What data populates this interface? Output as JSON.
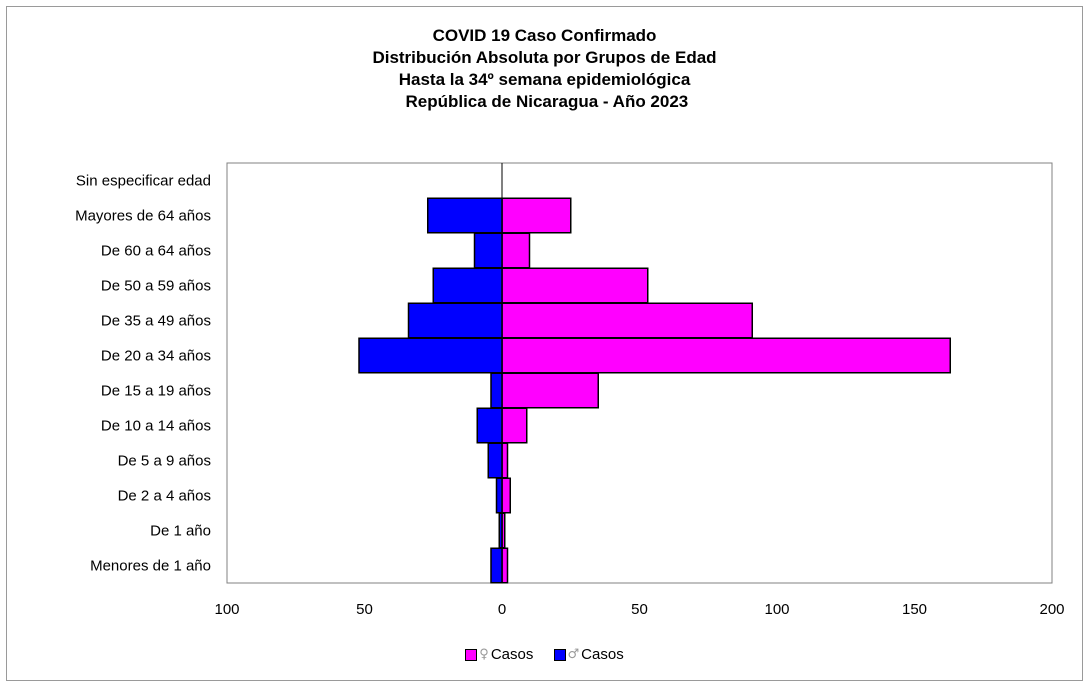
{
  "colors": {
    "female": "#ff00ff",
    "male": "#0000ff",
    "axis": "#000000",
    "plot_border": "#808080"
  },
  "chart_data": {
    "type": "bar",
    "orientation": "horizontal-population-pyramid",
    "title_lines": [
      "COVID 19 Caso Confirmado",
      "Distribución Absoluta por Grupos de Edad",
      "Hasta la 34º semana epidemiológica",
      " República de Nicaragua - Año 2023"
    ],
    "categories": [
      "Menores de 1 año",
      "De 1 año",
      "De 2 a 4 años",
      "De 5 a 9 años",
      "De 10 a 14 años",
      "De 15 a 19 años",
      "De 20 a 34 años",
      "De 35 a 49 años",
      "De 50 a 59 años",
      "De 60 a 64 años",
      "Mayores de 64 años",
      "Sin especificar edad"
    ],
    "series": [
      {
        "name": "♀ Casos",
        "legend_symbol": "♀",
        "legend_text": "Casos",
        "side": "right",
        "values": [
          2,
          1,
          3,
          2,
          9,
          35,
          163,
          91,
          53,
          10,
          25,
          0
        ]
      },
      {
        "name": "♂ Casos",
        "legend_symbol": "♂",
        "legend_text": "Casos",
        "side": "left",
        "values": [
          4,
          1,
          2,
          5,
          9,
          4,
          52,
          34,
          25,
          10,
          27,
          0
        ]
      }
    ],
    "xlim": [
      -100,
      200
    ],
    "xticks": [
      -100,
      -50,
      0,
      50,
      100,
      150,
      200
    ],
    "xtick_labels": [
      "100",
      "50",
      "0",
      "50",
      "100",
      "150",
      "200"
    ],
    "grid": false,
    "legend_position": "bottom"
  }
}
